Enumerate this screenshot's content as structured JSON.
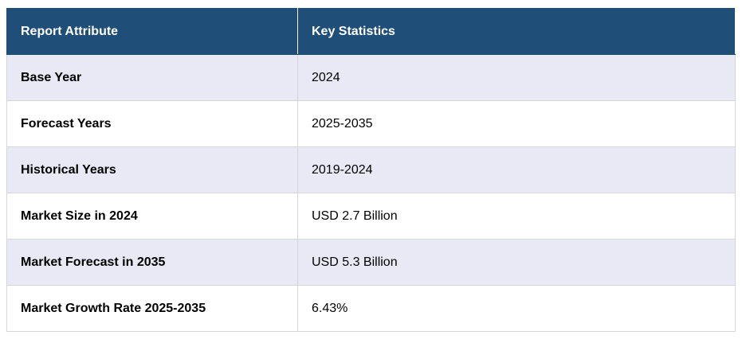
{
  "table": {
    "header": [
      "Report Attribute",
      "Key Statistics"
    ],
    "rows": [
      [
        "Base Year",
        "2024"
      ],
      [
        "Forecast Years",
        "2025-2035"
      ],
      [
        "Historical Years",
        "2019-2024"
      ],
      [
        "Market Size in 2024",
        "USD 2.7 Billion"
      ],
      [
        "Market Forecast in 2035",
        "USD 5.3 Billion"
      ],
      [
        "Market Growth Rate 2025-2035",
        "6.43%"
      ]
    ]
  }
}
